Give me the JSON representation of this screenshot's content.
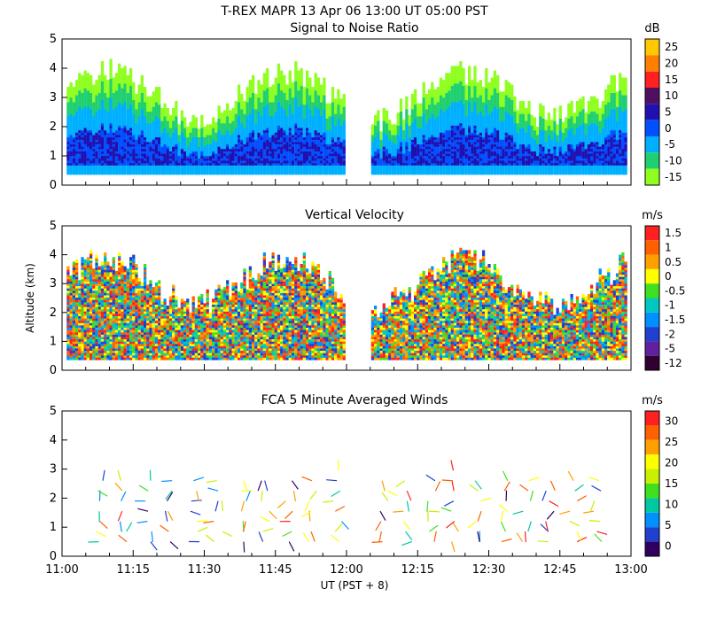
{
  "header": {
    "title": "T-REX   MAPR 13 Apr 06   13:00 UT   05:00   PST"
  },
  "chart_data": [
    {
      "type": "heatmap",
      "title": "Signal to Noise Ratio",
      "xlabel": "",
      "ylabel": "",
      "xlim_minutes_after_1100": [
        0,
        120
      ],
      "ylim": [
        0,
        5
      ],
      "yticks": [
        "0",
        "1",
        "2",
        "3",
        "4",
        "5"
      ],
      "data_gap_minutes": [
        60,
        65
      ],
      "colorbar": {
        "unit": "dB",
        "labels": [
          "25",
          "20",
          "15",
          "10",
          "5",
          "0",
          "-5",
          "-10",
          "-15"
        ],
        "colors": [
          "#ffc800",
          "#ff8000",
          "#ff2020",
          "#501060",
          "#2010b0",
          "#0050ff",
          "#00b0ff",
          "#20d070",
          "#90ff20"
        ]
      }
    },
    {
      "type": "heatmap",
      "title": "Vertical Velocity",
      "xlabel": "",
      "ylabel": "Altitude (km)",
      "xlim_minutes_after_1100": [
        0,
        120
      ],
      "ylim": [
        0,
        5
      ],
      "yticks": [
        "0",
        "1",
        "2",
        "3",
        "4",
        "5"
      ],
      "data_gap_minutes": [
        60,
        65
      ],
      "colorbar": {
        "unit": "m/s",
        "labels": [
          "1.5",
          "1",
          "0.5",
          "0",
          "-0.5",
          "-1",
          "-1.5",
          "-2",
          "-5",
          "-12"
        ],
        "colors": [
          "#ff2020",
          "#ff6000",
          "#ffa000",
          "#ffff00",
          "#40e020",
          "#00c8c0",
          "#0090ff",
          "#2040d0",
          "#6020a0",
          "#300030"
        ]
      }
    },
    {
      "type": "scatter",
      "title": "FCA 5 Minute Averaged Winds",
      "xlabel": "UT  (PST + 8)",
      "ylabel": "",
      "xlim_minutes_after_1100": [
        0,
        120
      ],
      "ylim": [
        0,
        5
      ],
      "yticks": [
        "0",
        "1",
        "2",
        "3",
        "4",
        "5"
      ],
      "xticks": [
        "11:00",
        "11:15",
        "11:30",
        "11:45",
        "12:00",
        "12:15",
        "12:30",
        "12:45",
        "13:00"
      ],
      "data_gap_minutes": [
        60,
        65
      ],
      "colorbar": {
        "unit": "m/s",
        "labels": [
          "30",
          "25",
          "20",
          "15",
          "10",
          "5",
          "0"
        ],
        "colors": [
          "#ff2020",
          "#ff6000",
          "#ffa000",
          "#ffff00",
          "#c8f000",
          "#40e020",
          "#00c8a0",
          "#0090ff",
          "#2040d0",
          "#300060"
        ]
      }
    }
  ]
}
